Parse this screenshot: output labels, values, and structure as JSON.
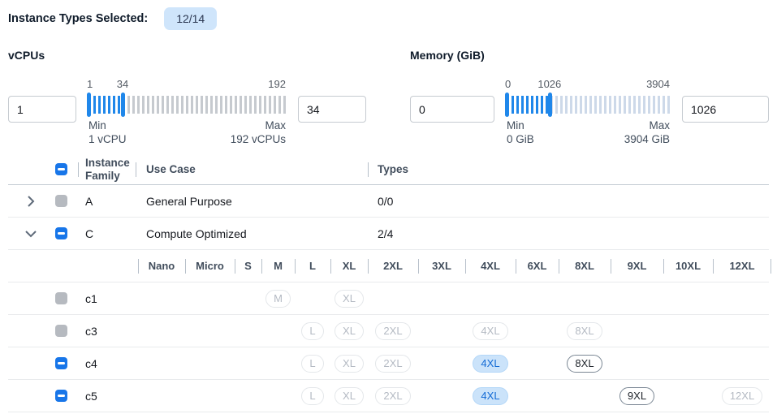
{
  "header": {
    "label": "Instance Types Selected:",
    "badge": "12/14"
  },
  "filters": {
    "vcpus": {
      "title": "vCPUs",
      "min_value": "1",
      "max_value": "34",
      "range_min": 1,
      "range_max": 192,
      "selected_low": 1,
      "selected_high": 34,
      "scale_labels": [
        "1",
        "34",
        "192"
      ],
      "min_caption": "Min",
      "min_unit": "1 vCPU",
      "max_caption": "Max",
      "max_unit": "192 vCPUs"
    },
    "memory": {
      "title": "Memory (GiB)",
      "min_value": "0",
      "max_value": "1026",
      "range_min": 0,
      "range_max": 3904,
      "selected_low": 0,
      "selected_high": 1026,
      "scale_labels": [
        "0",
        "1026",
        "3904"
      ],
      "min_caption": "Min",
      "min_unit": "0 GiB",
      "max_caption": "Max",
      "max_unit": "3904 GiB"
    }
  },
  "table": {
    "columns": {
      "family": "Instance Family",
      "use_case": "Use Case",
      "types": "Types"
    },
    "select_all_state": "indeterminate",
    "size_columns": [
      "Nano",
      "Micro",
      "S",
      "M",
      "L",
      "XL",
      "2XL",
      "3XL",
      "4XL",
      "6XL",
      "8XL",
      "9XL",
      "10XL",
      "12XL"
    ],
    "families": [
      {
        "name": "A",
        "use_case": "General Purpose",
        "types": "0/0",
        "expanded": false,
        "checkbox": "disabled",
        "instances": []
      },
      {
        "name": "C",
        "use_case": "Compute Optimized",
        "types": "2/4",
        "expanded": true,
        "checkbox": "indeterminate",
        "instances": [
          {
            "name": "c1",
            "checkbox": "disabled",
            "sizes": [
              {
                "label": "M",
                "state": "disabled"
              },
              {
                "label": "XL",
                "state": "disabled"
              }
            ]
          },
          {
            "name": "c3",
            "checkbox": "disabled",
            "sizes": [
              {
                "label": "L",
                "state": "disabled"
              },
              {
                "label": "XL",
                "state": "disabled"
              },
              {
                "label": "2XL",
                "state": "disabled"
              },
              {
                "label": "4XL",
                "state": "disabled"
              },
              {
                "label": "8XL",
                "state": "disabled"
              }
            ]
          },
          {
            "name": "c4",
            "checkbox": "indeterminate",
            "sizes": [
              {
                "label": "L",
                "state": "disabled"
              },
              {
                "label": "XL",
                "state": "disabled"
              },
              {
                "label": "2XL",
                "state": "disabled"
              },
              {
                "label": "4XL",
                "state": "selected"
              },
              {
                "label": "8XL",
                "state": "enabled"
              }
            ]
          },
          {
            "name": "c5",
            "checkbox": "indeterminate",
            "sizes": [
              {
                "label": "L",
                "state": "disabled"
              },
              {
                "label": "XL",
                "state": "disabled"
              },
              {
                "label": "2XL",
                "state": "disabled"
              },
              {
                "label": "4XL",
                "state": "selected"
              },
              {
                "label": "9XL",
                "state": "enabled"
              },
              {
                "label": "12XL",
                "state": "disabled"
              }
            ]
          }
        ]
      }
    ]
  },
  "colors": {
    "accent_blue": "#1f87ea",
    "checkbox_blue": "#1876e9",
    "badge_bg": "#cfe5fb",
    "selected_pill_bg": "#cbe3fa",
    "selected_pill_text": "#146bd5",
    "disabled_gray": "#b6bac0",
    "row_border": "#e9ebed"
  }
}
